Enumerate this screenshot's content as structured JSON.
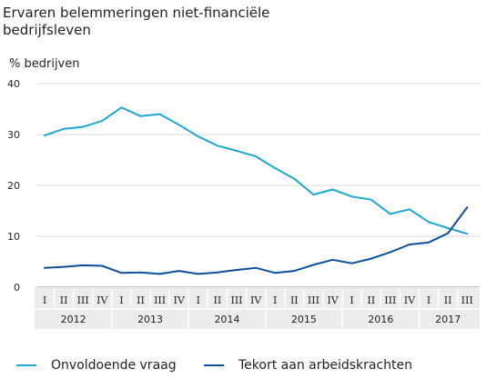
{
  "title_line1": "Ervaren belemmeringen niet-financiële",
  "title_line2": "bedrijfsleven",
  "unit_label": "% bedrijven",
  "chart_data": {
    "type": "line",
    "title": "Ervaren belemmeringen niet-financiële bedrijfsleven",
    "ylabel": "% bedrijven",
    "ylim": [
      0,
      40
    ],
    "yticks": [
      0,
      10,
      20,
      30,
      40
    ],
    "grid": true,
    "legend_position": "bottom",
    "quarter_labels": [
      "I",
      "II",
      "III",
      "IV",
      "I",
      "II",
      "III",
      "IV",
      "I",
      "II",
      "III",
      "IV",
      "I",
      "II",
      "III",
      "IV",
      "I",
      "II",
      "III",
      "IV",
      "I",
      "II",
      "III"
    ],
    "years": [
      {
        "label": "2012",
        "quarters": 4
      },
      {
        "label": "2013",
        "quarters": 4
      },
      {
        "label": "2014",
        "quarters": 4
      },
      {
        "label": "2015",
        "quarters": 4
      },
      {
        "label": "2016",
        "quarters": 4
      },
      {
        "label": "2017",
        "quarters": 3
      }
    ],
    "series": [
      {
        "name": "Onvoldoende vraag",
        "color": "#1fa6d2",
        "values": [
          29.8,
          31.1,
          31.5,
          32.7,
          35.3,
          33.6,
          34.0,
          31.9,
          29.6,
          27.8,
          26.8,
          25.7,
          23.4,
          21.3,
          18.2,
          19.2,
          17.8,
          17.2,
          14.4,
          15.3,
          12.8,
          11.6,
          10.5
        ]
      },
      {
        "name": "Tekort aan arbeidskrachten",
        "color": "#0b4f9c",
        "values": [
          3.8,
          4.0,
          4.3,
          4.2,
          2.8,
          2.9,
          2.6,
          3.2,
          2.6,
          2.9,
          3.4,
          3.8,
          2.8,
          3.2,
          4.4,
          5.4,
          4.7,
          5.6,
          6.9,
          8.4,
          8.8,
          10.6,
          15.7
        ]
      }
    ]
  }
}
